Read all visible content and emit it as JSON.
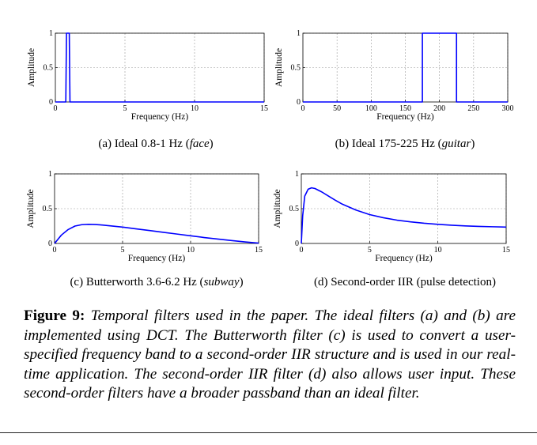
{
  "figure": {
    "label": "Figure 9:",
    "caption": "Temporal filters used in the paper. The ideal filters (a) and (b) are implemented using DCT. The Butterworth filter (c) is used to convert a user-specified frequency band to a second-order IIR structure and is used in our real-time application. The second-order IIR filter (d) also allows user input. These second-order filters have a broader passband than an ideal filter."
  },
  "chart_data": [
    {
      "type": "line",
      "subcaption": {
        "prefix": "(a)  Ideal 0.8-1 Hz (",
        "italic": "face",
        "suffix": ")"
      },
      "xlabel": "Frequency (Hz)",
      "ylabel": "Amplitude",
      "xlim": [
        0,
        15
      ],
      "ylim": [
        0,
        1
      ],
      "xticks": [
        0,
        5,
        10,
        15
      ],
      "yticks": [
        0,
        0.5,
        1
      ],
      "grid": true,
      "color": "#0000ff",
      "series": [
        {
          "x": [
            0,
            0.75,
            0.8,
            1.0,
            1.05,
            15
          ],
          "y": [
            0,
            0,
            1,
            1,
            0,
            0
          ]
        }
      ]
    },
    {
      "type": "line",
      "subcaption": {
        "prefix": "(b)  Ideal 175-225 Hz (",
        "italic": "guitar",
        "suffix": ")"
      },
      "xlabel": "Frequency (Hz)",
      "ylabel": "Amplitude",
      "xlim": [
        0,
        300
      ],
      "ylim": [
        0,
        1
      ],
      "xticks": [
        0,
        50,
        100,
        150,
        200,
        250,
        300
      ],
      "yticks": [
        0,
        0.5,
        1
      ],
      "grid": true,
      "color": "#0000ff",
      "series": [
        {
          "x": [
            0,
            175,
            175,
            225,
            225,
            300
          ],
          "y": [
            0,
            0,
            1,
            1,
            0,
            0
          ]
        }
      ]
    },
    {
      "type": "line",
      "subcaption": {
        "prefix": "(c)  Butterworth 3.6-6.2 Hz (",
        "italic": "subway",
        "suffix": ")"
      },
      "xlabel": "Frequency (Hz)",
      "ylabel": "Amplitude",
      "xlim": [
        0,
        15
      ],
      "ylim": [
        0,
        1
      ],
      "xticks": [
        0,
        5,
        10,
        15
      ],
      "yticks": [
        0,
        0.5,
        1
      ],
      "grid": true,
      "color": "#0000ff",
      "series": [
        {
          "x": [
            0,
            0.5,
            1,
            1.5,
            2,
            2.5,
            3,
            3.5,
            4,
            5,
            6,
            7,
            8,
            9,
            10,
            11,
            12,
            13,
            14,
            15
          ],
          "y": [
            0,
            0.12,
            0.2,
            0.25,
            0.27,
            0.275,
            0.272,
            0.265,
            0.255,
            0.235,
            0.21,
            0.185,
            0.16,
            0.135,
            0.11,
            0.085,
            0.063,
            0.042,
            0.022,
            0.005
          ]
        }
      ]
    },
    {
      "type": "line",
      "subcaption": {
        "prefix": "(d)  Second-order IIR (pulse detection)",
        "italic": "",
        "suffix": ""
      },
      "xlabel": "Frequency (Hz)",
      "ylabel": "Amplitude",
      "xlim": [
        0,
        15
      ],
      "ylim": [
        0,
        1
      ],
      "xticks": [
        0,
        5,
        10,
        15
      ],
      "yticks": [
        0,
        0.5,
        1
      ],
      "grid": true,
      "color": "#0000ff",
      "series": [
        {
          "x": [
            0,
            0.1,
            0.25,
            0.5,
            0.75,
            1,
            1.5,
            2,
            2.5,
            3,
            4,
            5,
            6,
            7,
            8,
            9,
            10,
            11,
            12,
            13,
            14,
            15
          ],
          "y": [
            0,
            0.4,
            0.68,
            0.78,
            0.8,
            0.79,
            0.74,
            0.68,
            0.62,
            0.565,
            0.48,
            0.415,
            0.37,
            0.335,
            0.31,
            0.29,
            0.275,
            0.262,
            0.252,
            0.245,
            0.24,
            0.235
          ]
        }
      ]
    }
  ]
}
